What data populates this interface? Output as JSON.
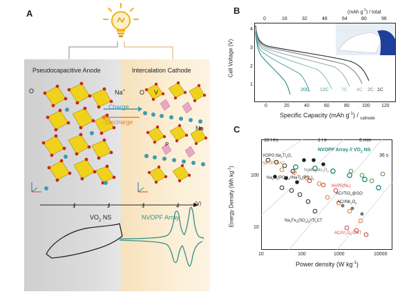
{
  "panel_a": {
    "letter": "A",
    "anode_title": "Pseudocapacitive Anode",
    "cathode_title": "Intercalation Cathode",
    "atom_o_left": "O",
    "atom_na_plus": "Na",
    "atom_na_plus_sup": "+",
    "atom_o_right": "O",
    "atom_v": "V",
    "atom_na_right": "Na",
    "atom_p": "P",
    "charge_label": "Charge",
    "discharge_label": "Discharge",
    "axis_ticks": [
      "1",
      "2",
      "3",
      "4"
    ],
    "axis_unit": "(V)",
    "vo2_label": "VO",
    "vo2_sub": "2",
    "vo2_suffix": " NS",
    "nvopf_label": "NVOPF Array",
    "colors": {
      "anode_bg": "#c9c9c9",
      "cathode_bg": "#fbe8c6",
      "arrow_charge": "#3a9bb3",
      "arrow_discharge": "#e0842f",
      "cv_black": "#222222",
      "cv_teal": "#2f8f8a"
    }
  },
  "panel_b": {
    "letter": "B",
    "top_ticks": [
      "0",
      "16",
      "32",
      "48",
      "64",
      "80",
      "96"
    ],
    "top_unit": "(mAh g",
    "top_unit_sup": "-1",
    "top_unit_tail": ") / total",
    "ylabel": "Cell Voltage (V)",
    "y_ticks": [
      "1",
      "2",
      "3",
      "4"
    ],
    "x_ticks": [
      "0",
      "20",
      "40",
      "60",
      "80",
      "100",
      "120"
    ],
    "xlabel_main": "Specific Capacity (mAh g",
    "xlabel_sup": "-1",
    "xlabel_tail": ")",
    "xlabel_sub": "cathode",
    "rate_labels": [
      "20C",
      "12C",
      "7C",
      "4C",
      "2C",
      "1C"
    ]
  },
  "panel_c": {
    "letter": "C",
    "ylabel": "Energy Density (Wh kg",
    "ylabel_sup": "-1",
    "ylabel_tail": ")",
    "xlabel": "Power density (W kg",
    "xlabel_sup": "-1",
    "xlabel_tail": ")",
    "x_ticks": [
      "10",
      "100",
      "1000",
      "10000"
    ],
    "y_ticks": [
      "10",
      "100"
    ],
    "time_labels": [
      "10 Hrs",
      "1 Hr",
      "6 min",
      "36 s"
    ],
    "series_label_ours": "NVOPF Array // VO",
    "series_label_ours_sub": "2",
    "series_label_ours_tail": " NS",
    "ref_labels": [
      "VOPO",
      "Na",
      "Ti",
      "O",
      "NVOPF//AC",
      "Na",
      "V",
      "(PO",
      ")",
      "//Na",
      "Ti",
      "(PO",
      ")",
      "NaMn",
      "Mo",
      "O",
      "NVPF(NL)",
      "AC//TiO",
      "@GO",
      "AC//Nb",
      "O",
      "Na",
      "Fe",
      "(SO",
      ")",
      "//Ti",
      "CT",
      "AC//V",
      "O",
      "-CNT"
    ],
    "colors": {
      "ours": "#1a8a7a",
      "ref_black": "#222222",
      "ref_orange": "#e07a2a",
      "ref_red": "#d63b3b",
      "ref_green": "#4f9a3a",
      "ref_grey": "#777777"
    }
  }
}
